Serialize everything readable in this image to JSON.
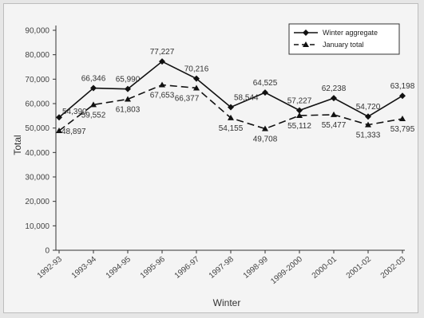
{
  "chart_data": {
    "type": "line",
    "xlabel": "Winter",
    "ylabel": "Total",
    "ylim": [
      0,
      90000
    ],
    "yticks": [
      0,
      10000,
      20000,
      30000,
      40000,
      50000,
      60000,
      70000,
      80000,
      90000
    ],
    "ytick_labels": [
      "0",
      "10,000",
      "20,000",
      "30,000",
      "40,000",
      "50,000",
      "60,000",
      "70,000",
      "80,000",
      "90,000"
    ],
    "categories": [
      "1992-93",
      "1993-94",
      "1994-95",
      "1995-96",
      "1996-97",
      "1997-98",
      "1998-99",
      "1999-2000",
      "2000-01",
      "2001-02",
      "2002-03"
    ],
    "series": [
      {
        "name": "Winter aggregate",
        "values": [
          54390,
          66346,
          65990,
          77227,
          70216,
          58544,
          64525,
          57227,
          62238,
          54720,
          63198
        ],
        "labels": [
          "54,390",
          "66,346",
          "65,990",
          "77,227",
          "70,216",
          "58,544",
          "64,525",
          "57,227",
          "62,238",
          "54,720",
          "63,198"
        ],
        "style": "solid",
        "marker": "diamond",
        "color": "#111111"
      },
      {
        "name": "January total",
        "values": [
          48897,
          59552,
          61803,
          67653,
          66377,
          54155,
          49708,
          55112,
          55477,
          51333,
          53795
        ],
        "labels": [
          "48,897",
          "59,552",
          "61,803",
          "67,653",
          "66,377",
          "54,155",
          "49,708",
          "55,112",
          "55,477",
          "51,333",
          "53,795"
        ],
        "style": "dashed",
        "marker": "triangle",
        "color": "#111111"
      }
    ],
    "legend_position": "top-right",
    "grid": false
  }
}
